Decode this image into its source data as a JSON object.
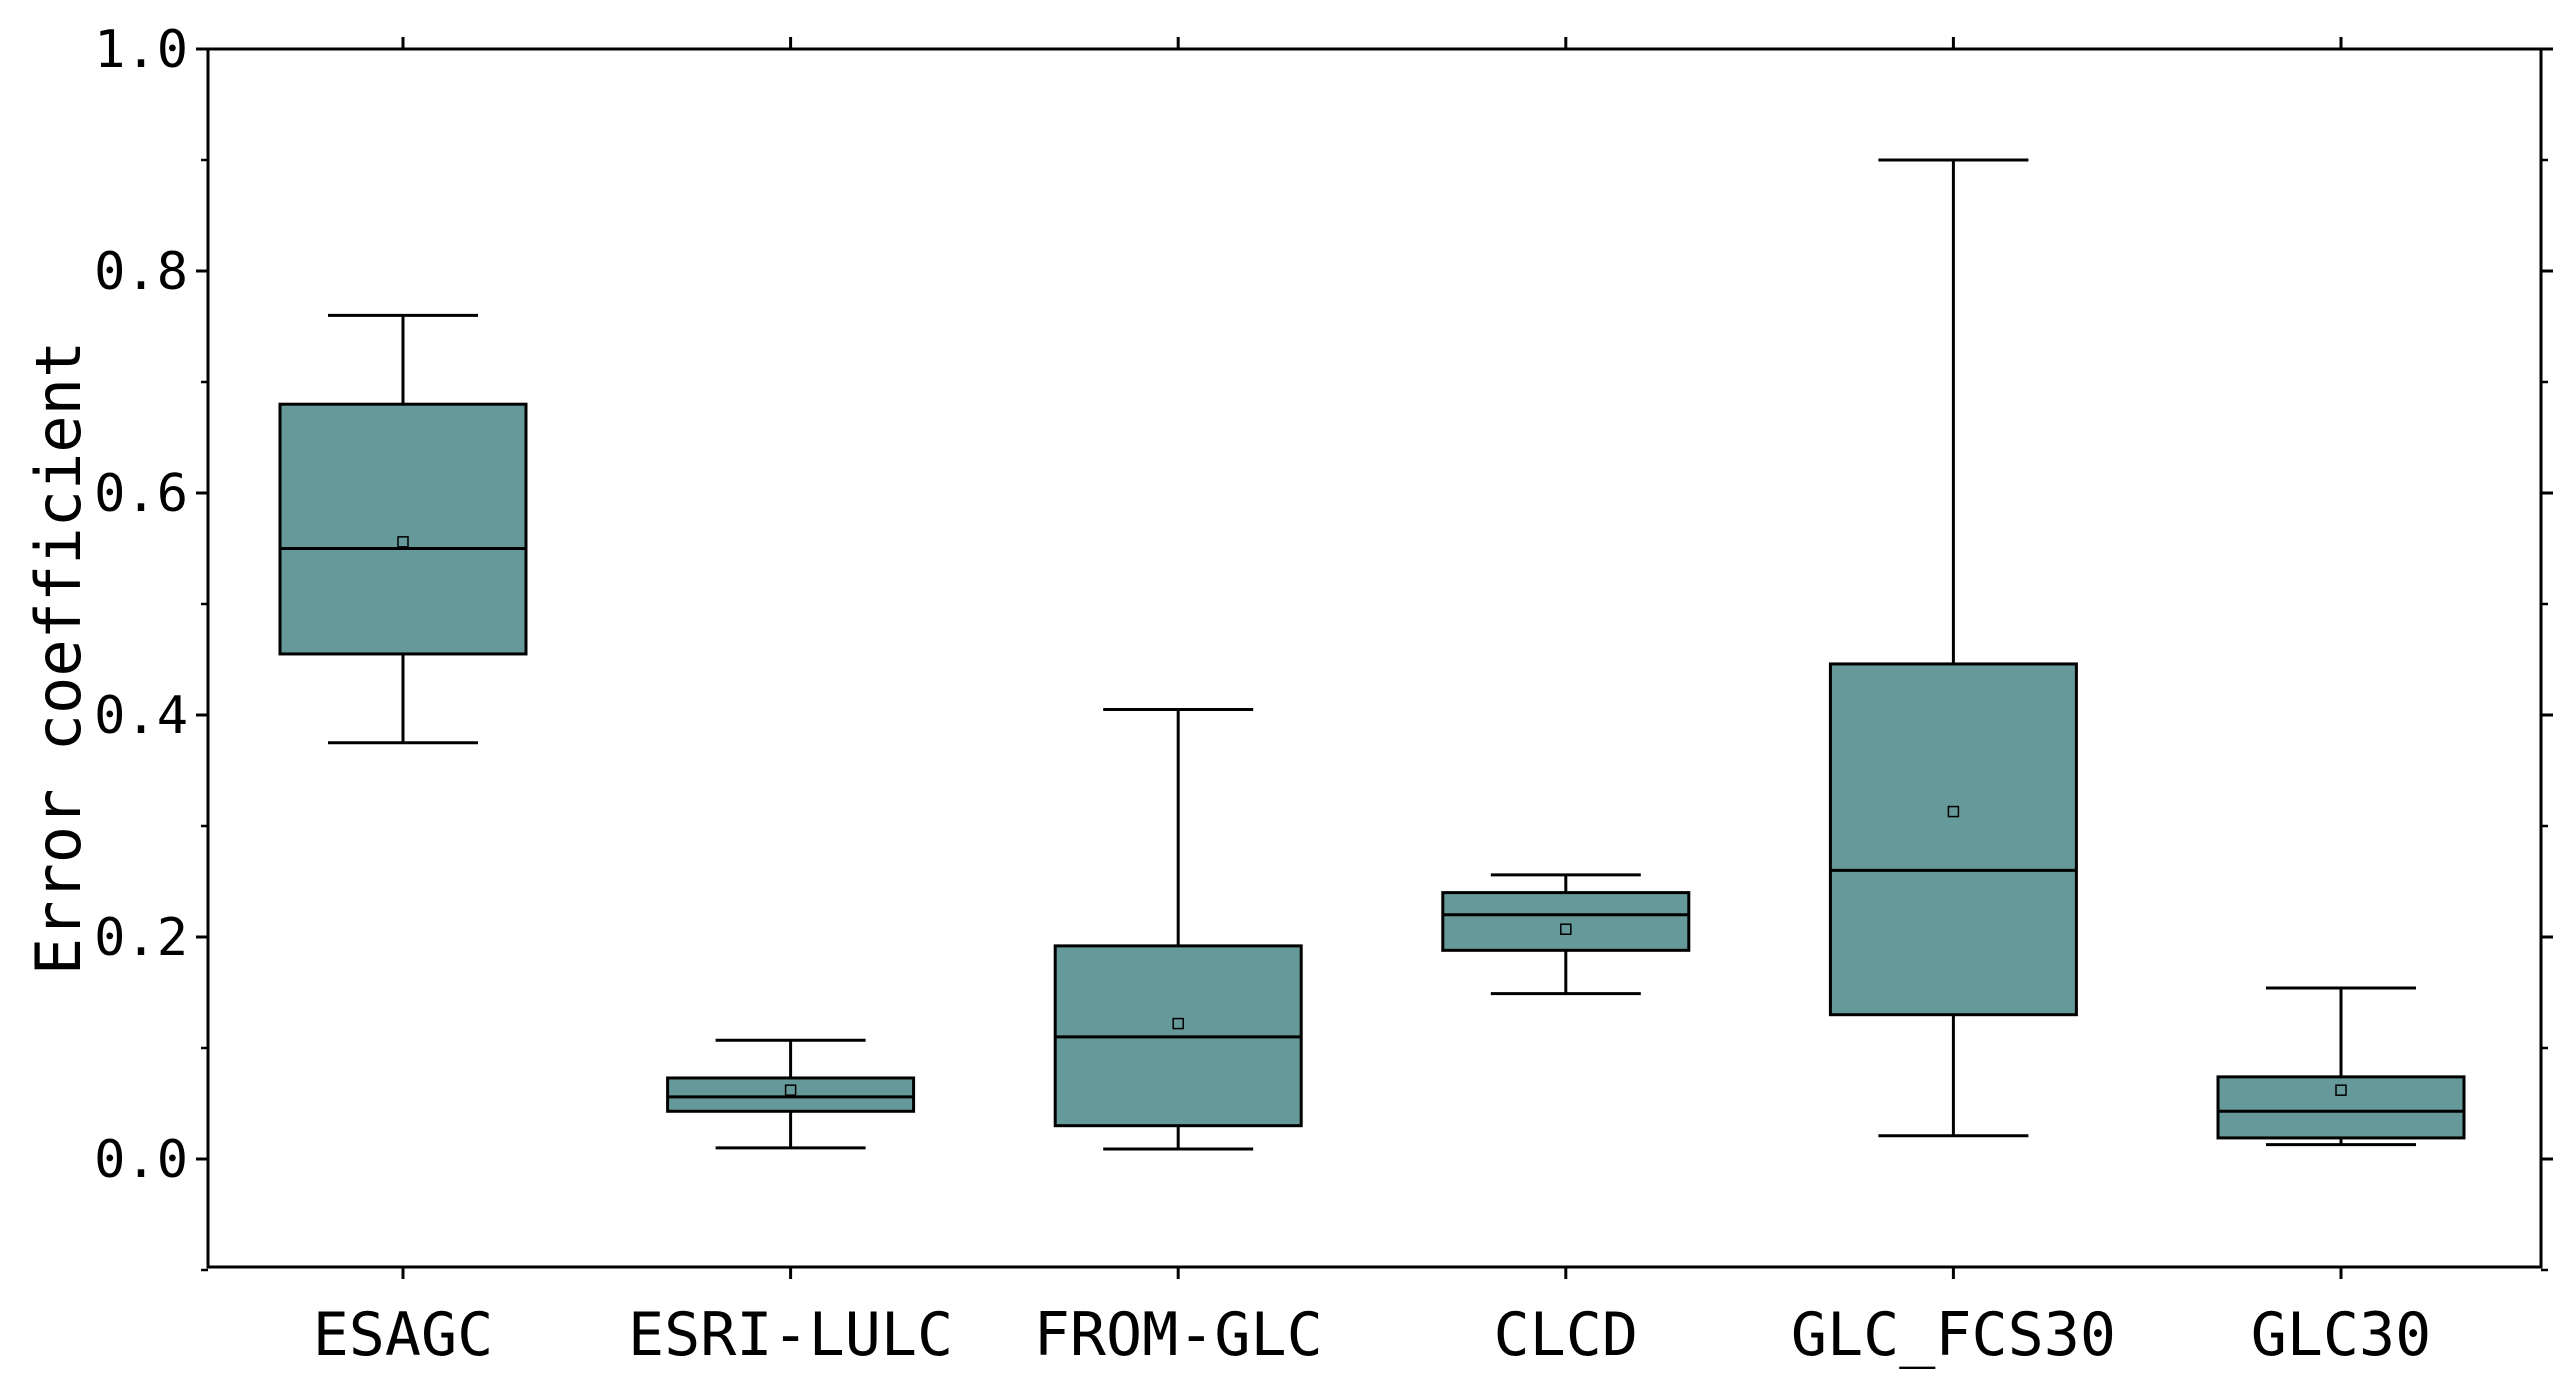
{
  "chart_data": {
    "type": "box",
    "title": "",
    "xlabel": "",
    "ylabel": "Error coefficient",
    "ylim": [
      -0.1,
      1.0
    ],
    "yticks": [
      "0.0",
      "0.2",
      "0.4",
      "0.6",
      "0.8",
      "1.0"
    ],
    "ytick_values": [
      0.0,
      0.2,
      0.4,
      0.6,
      0.8,
      1.0
    ],
    "grid": false,
    "legend": "none",
    "box_color": "#669999",
    "edge_color": "#000000",
    "categories": [
      "ESAGC",
      "ESRI-LULC",
      "FROM-GLC",
      "CLCD",
      "GLC_FCS30",
      "GLC30"
    ],
    "boxes": [
      {
        "name": "ESAGC",
        "whisker_low": 0.375,
        "q1": 0.455,
        "median": 0.55,
        "q3": 0.68,
        "whisker_high": 0.76,
        "mean": 0.556
      },
      {
        "name": "ESRI-LULC",
        "whisker_low": 0.01,
        "q1": 0.043,
        "median": 0.056,
        "q3": 0.073,
        "whisker_high": 0.107,
        "mean": 0.062
      },
      {
        "name": "FROM-GLC",
        "whisker_low": 0.009,
        "q1": 0.03,
        "median": 0.11,
        "q3": 0.192,
        "whisker_high": 0.405,
        "mean": 0.122
      },
      {
        "name": "CLCD",
        "whisker_low": 0.149,
        "q1": 0.188,
        "median": 0.22,
        "q3": 0.24,
        "whisker_high": 0.256,
        "mean": 0.207
      },
      {
        "name": "GLC_FCS30",
        "whisker_low": 0.021,
        "q1": 0.13,
        "median": 0.26,
        "q3": 0.446,
        "whisker_high": 0.9,
        "mean": 0.313
      },
      {
        "name": "GLC30",
        "whisker_low": 0.013,
        "q1": 0.019,
        "median": 0.043,
        "q3": 0.074,
        "whisker_high": 0.154,
        "mean": 0.062
      }
    ]
  }
}
